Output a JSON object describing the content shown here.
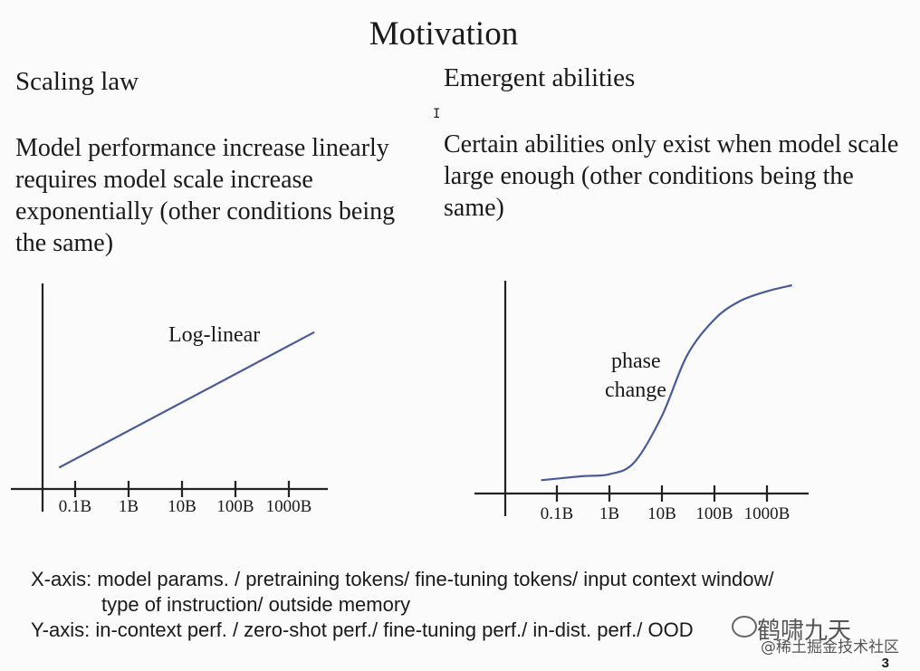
{
  "slide": {
    "title": "Motivation",
    "page_number": "3"
  },
  "left_panel": {
    "heading": "Scaling law",
    "text": "Model performance increase linearly requires model scale increase exponentially (other conditions being the same)"
  },
  "right_panel": {
    "heading": "Emergent abilities",
    "text": "Certain abilities only exist when model scale large enough (other conditions being the same)"
  },
  "cursor_glyph": "I",
  "notes": {
    "x_axis_line1": "X-axis: model params. / pretraining tokens/ fine-tuning tokens/ input context window/",
    "x_axis_line2": "type of instruction/ outside memory",
    "y_axis_line": "Y-axis: in-context perf. / zero-shot perf./ fine-tuning perf./ in-dist. perf./ OOD"
  },
  "watermark": {
    "main": "鹤啸九天",
    "sub": "@稀土掘金技术社区",
    "icon": "chat-bubble-icon"
  },
  "chart_data": [
    {
      "type": "line",
      "title": "",
      "xlabel": "",
      "ylabel": "",
      "x_scale": "log",
      "categories": [
        "0.1B",
        "1B",
        "10B",
        "100B",
        "1000B"
      ],
      "annotation": "Log-linear",
      "series": [
        {
          "x": [
            "0.05B",
            "3000B"
          ],
          "y": [
            0.1,
            0.95
          ]
        }
      ],
      "color": "#4a5b96",
      "grid": false
    },
    {
      "type": "line",
      "title": "",
      "xlabel": "",
      "ylabel": "",
      "x_scale": "log",
      "categories": [
        "0.1B",
        "1B",
        "10B",
        "100B",
        "1000B"
      ],
      "annotation_line1": "phase",
      "annotation_line2": "change",
      "series": [
        {
          "x": [
            "0.05B",
            "0.3B",
            "1B",
            "3B",
            "10B",
            "30B",
            "100B",
            "300B",
            "1000B",
            "3000B"
          ],
          "y": [
            0.03,
            0.05,
            0.06,
            0.12,
            0.35,
            0.65,
            0.83,
            0.92,
            0.97,
            1.0
          ]
        }
      ],
      "color": "#4a5b96",
      "grid": false
    }
  ]
}
